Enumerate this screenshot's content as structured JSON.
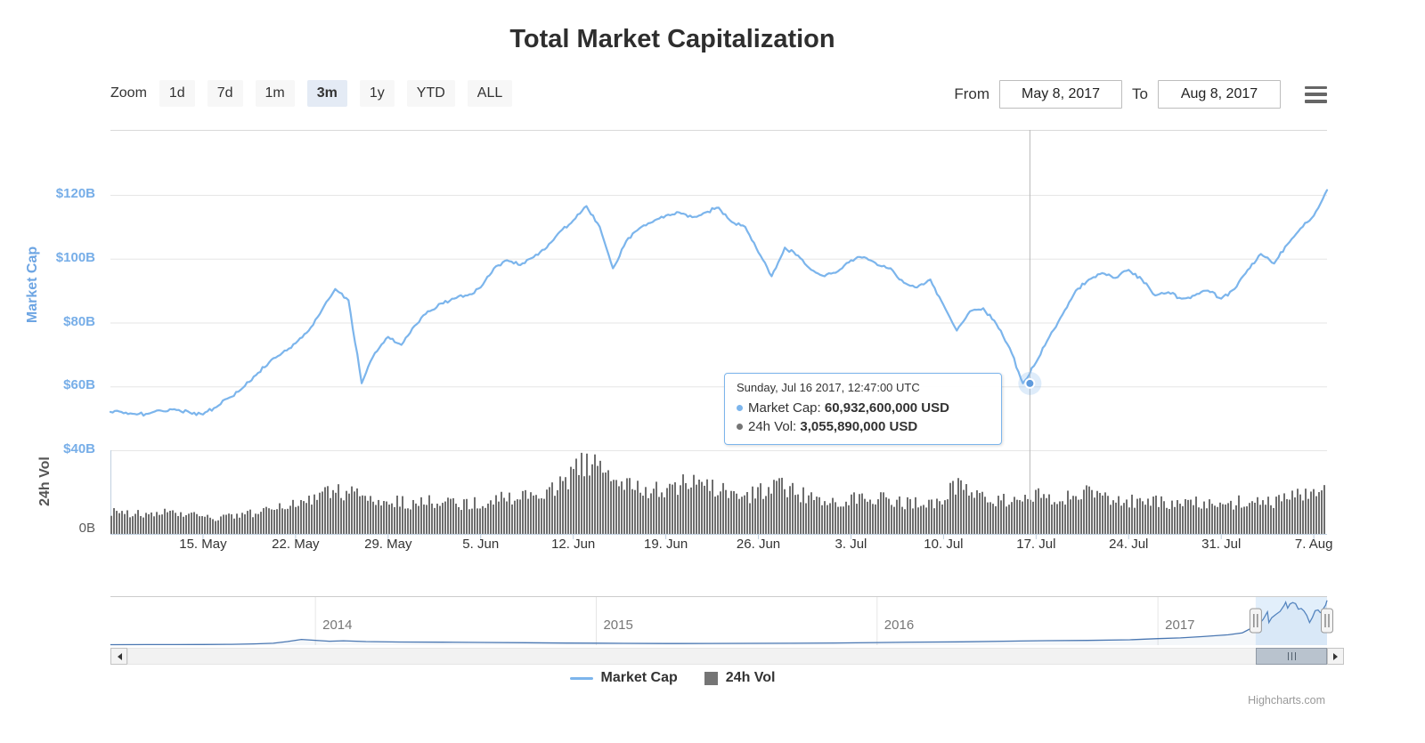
{
  "title": "Total Market Capitalization",
  "toolbar": {
    "zoom_label": "Zoom",
    "buttons": [
      "1d",
      "7d",
      "1m",
      "3m",
      "1y",
      "YTD",
      "ALL"
    ],
    "selected_button": "3m",
    "from_label": "From",
    "from_value": "May 8, 2017",
    "to_label": "To",
    "to_value": "Aug 8, 2017"
  },
  "tooltip": {
    "date": "Sunday, Jul 16 2017, 12:47:00 UTC",
    "rows": [
      {
        "label": "Market Cap:",
        "value": "60,932,600,000 USD",
        "color": "#7cb5ec"
      },
      {
        "label": "24h Vol:",
        "value": "3,055,890,000 USD",
        "color": "#757575"
      }
    ]
  },
  "legend": [
    {
      "label": "Market Cap",
      "symbol": "line",
      "color": "#7cb5ec"
    },
    {
      "label": "24h Vol",
      "symbol": "square",
      "color": "#757575"
    }
  ],
  "credit": "Highcharts.com",
  "colors": {
    "market_cap_line": "#7cb5ec",
    "volume_bar": "#6e6e6e",
    "axis_line": "#c0d0e0",
    "gridline": "#e6e6e6",
    "crosshair": "#b8b8b8",
    "navigator_line": "#4a77b2",
    "navigator_mask": "rgba(124,181,236,0.22)"
  },
  "chart_data": [
    {
      "type": "line",
      "name": "Market Cap",
      "unit": "USD billions",
      "date_start": "May 8, 2017",
      "date_end": "Aug 8, 2017",
      "ylim": [
        40,
        140
      ],
      "yticks": [
        {
          "v": 120,
          "label": "$120B"
        },
        {
          "v": 100,
          "label": "$100B"
        },
        {
          "v": 80,
          "label": "$80B"
        },
        {
          "v": 60,
          "label": "$60B"
        },
        {
          "v": 40,
          "label": "$40B"
        }
      ],
      "xticks": [
        {
          "day": 7,
          "label": "15. May"
        },
        {
          "day": 14,
          "label": "22. May"
        },
        {
          "day": 21,
          "label": "29. May"
        },
        {
          "day": 28,
          "label": "5. Jun"
        },
        {
          "day": 35,
          "label": "12. Jun"
        },
        {
          "day": 42,
          "label": "19. Jun"
        },
        {
          "day": 49,
          "label": "26. Jun"
        },
        {
          "day": 56,
          "label": "3. Jul"
        },
        {
          "day": 63,
          "label": "10. Jul"
        },
        {
          "day": 70,
          "label": "17. Jul"
        },
        {
          "day": 77,
          "label": "24. Jul"
        },
        {
          "day": 84,
          "label": "31. Jul"
        },
        {
          "day": 91,
          "label": "7. Aug"
        }
      ],
      "daily_values_billion_usd": [
        52,
        51.6,
        51.2,
        51.6,
        52.2,
        52.6,
        51.8,
        51.2,
        53.5,
        56.5,
        59.5,
        63.5,
        67.5,
        70.5,
        73.5,
        77.5,
        84,
        90.5,
        87,
        61,
        70.5,
        75.5,
        73,
        79,
        83.5,
        86,
        87.5,
        88.5,
        91,
        97,
        99.5,
        98,
        100.5,
        103.5,
        108.5,
        112,
        116.5,
        110,
        97,
        105.5,
        109.5,
        111.5,
        113.5,
        114.5,
        113,
        114.5,
        116,
        111.5,
        110,
        102,
        94.5,
        103.5,
        101,
        96.5,
        94.5,
        96,
        99.5,
        100.5,
        98,
        97,
        92.5,
        91,
        93.5,
        85.5,
        77.5,
        83.5,
        84.5,
        79.5,
        72,
        61,
        67.5,
        75.5,
        82.5,
        90,
        93.5,
        95.5,
        94,
        96.5,
        93.5,
        88.5,
        89.5,
        87.5,
        88.5,
        90,
        87.5,
        90.5,
        96.5,
        101.5,
        98.5,
        104.5,
        109.5,
        113.5,
        121.5
      ],
      "selected_point": {
        "datetime": "Sunday, Jul 16 2017, 12:47:00 UTC",
        "day_offset": 69.53,
        "market_cap_billion_usd": 60.93
      }
    },
    {
      "type": "bar",
      "name": "24h Vol",
      "unit": "USD billions",
      "ylim": [
        0,
        7.4
      ],
      "yticks": [
        {
          "v": 0,
          "label": "0B"
        }
      ],
      "daily_values_billion_usd": [
        2.0,
        1.9,
        1.8,
        1.7,
        1.9,
        1.8,
        1.7,
        1.5,
        1.4,
        1.5,
        1.7,
        1.9,
        2.1,
        2.3,
        2.8,
        3.1,
        3.6,
        3.9,
        3.7,
        3.4,
        3.1,
        2.9,
        2.8,
        2.6,
        2.9,
        3.0,
        2.8,
        2.6,
        2.8,
        3.1,
        3.4,
        3.2,
        3.5,
        3.8,
        4.3,
        5.2,
        6.6,
        5.8,
        4.9,
        4.3,
        4.0,
        3.9,
        4.0,
        4.3,
        4.5,
        4.2,
        3.9,
        3.6,
        3.4,
        3.7,
        4.5,
        4.0,
        3.6,
        3.3,
        3.1,
        3.0,
        3.1,
        3.4,
        3.3,
        3.0,
        2.8,
        2.7,
        2.5,
        3.4,
        4.2,
        3.7,
        3.3,
        3.1,
        2.8,
        3.06,
        3.5,
        3.3,
        3.0,
        3.4,
        3.6,
        3.5,
        3.2,
        3.0,
        2.8,
        2.9,
        2.6,
        2.5,
        2.8,
        2.6,
        2.5,
        2.8,
        3.1,
        2.9,
        2.8,
        3.3,
        3.5,
        3.8,
        4.0
      ],
      "selected_point": {
        "day_offset": 69.53,
        "vol_billion_usd": 3.06
      }
    },
    {
      "type": "area",
      "name": "navigator",
      "year_labels": [
        "2014",
        "2015",
        "2016",
        "2017"
      ],
      "selected_range": {
        "from_year_frac": 2017.348,
        "to_year_frac": 2017.602
      },
      "points": [
        [
          2013.27,
          1.3
        ],
        [
          2013.4,
          1.4
        ],
        [
          2013.5,
          1.5
        ],
        [
          2013.6,
          1.7
        ],
        [
          2013.7,
          2.2
        ],
        [
          2013.78,
          3.4
        ],
        [
          2013.85,
          5
        ],
        [
          2013.9,
          9.5
        ],
        [
          2013.95,
          15.5
        ],
        [
          2014.0,
          13
        ],
        [
          2014.05,
          10.5
        ],
        [
          2014.1,
          11.8
        ],
        [
          2014.18,
          9.5
        ],
        [
          2014.3,
          8.5
        ],
        [
          2014.45,
          8
        ],
        [
          2014.6,
          7.2
        ],
        [
          2014.75,
          6.5
        ],
        [
          2014.9,
          5.6
        ],
        [
          2015.0,
          5.2
        ],
        [
          2015.1,
          4.7
        ],
        [
          2015.25,
          4.4
        ],
        [
          2015.4,
          4.6
        ],
        [
          2015.55,
          4.8
        ],
        [
          2015.7,
          5.1
        ],
        [
          2015.85,
          5.7
        ],
        [
          2016.0,
          7
        ],
        [
          2016.15,
          8.2
        ],
        [
          2016.3,
          9
        ],
        [
          2016.45,
          10.5
        ],
        [
          2016.6,
          12
        ],
        [
          2016.75,
          12.8
        ],
        [
          2016.9,
          14.5
        ],
        [
          2017.0,
          17.5
        ],
        [
          2017.08,
          19.5
        ],
        [
          2017.16,
          23
        ],
        [
          2017.25,
          28
        ],
        [
          2017.3,
          33
        ],
        [
          2017.348,
          52
        ],
        [
          2017.36,
          57
        ],
        [
          2017.375,
          70
        ],
        [
          2017.39,
          90
        ],
        [
          2017.395,
          61
        ],
        [
          2017.405,
          74
        ],
        [
          2017.42,
          83
        ],
        [
          2017.435,
          91
        ],
        [
          2017.45,
          108
        ],
        [
          2017.455,
          116
        ],
        [
          2017.462,
          100
        ],
        [
          2017.47,
          111
        ],
        [
          2017.48,
          115
        ],
        [
          2017.49,
          112
        ],
        [
          2017.5,
          97
        ],
        [
          2017.51,
          99
        ],
        [
          2017.52,
          92
        ],
        [
          2017.53,
          80
        ],
        [
          2017.54,
          61
        ],
        [
          2017.55,
          75
        ],
        [
          2017.56,
          93
        ],
        [
          2017.57,
          95
        ],
        [
          2017.578,
          88
        ],
        [
          2017.585,
          89
        ],
        [
          2017.59,
          100
        ],
        [
          2017.597,
          108
        ],
        [
          2017.602,
          121
        ]
      ]
    }
  ]
}
